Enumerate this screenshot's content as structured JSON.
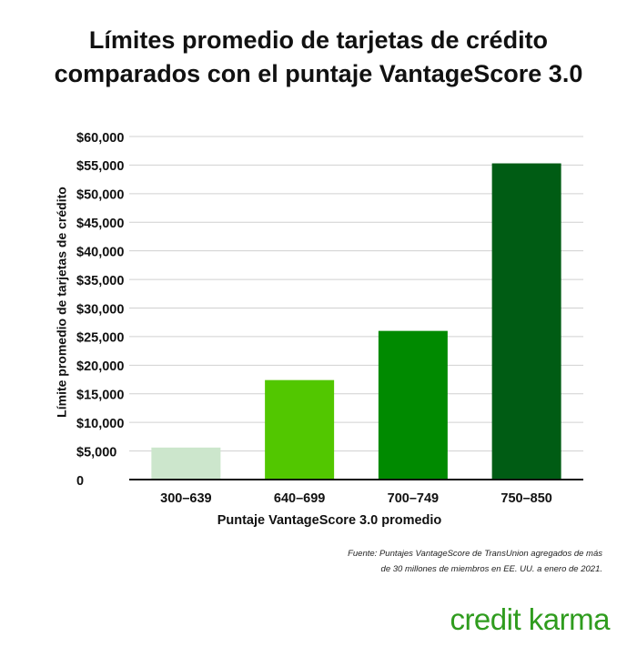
{
  "chart_data": {
    "type": "bar",
    "title_line1": "Límites promedio de tarjetas de crédito",
    "title_line2": "comparados con el puntaje VantageScore 3.0",
    "xlabel": "Puntaje VantageScore 3.0 promedio",
    "ylabel": "Límite promedio de tarjetas de crédito",
    "categories": [
      "300–639",
      "640–699",
      "700–749",
      "750–850"
    ],
    "values": [
      5600,
      17400,
      26000,
      55300
    ],
    "colors": [
      "#cce6cc",
      "#52c700",
      "#008a00",
      "#005c14"
    ],
    "ylim": [
      0,
      60000
    ],
    "yticks": [
      0,
      5000,
      10000,
      15000,
      20000,
      25000,
      30000,
      35000,
      40000,
      45000,
      50000,
      55000,
      60000
    ],
    "ytick_labels": [
      "0",
      "$5,000",
      "$10,000",
      "$15,000",
      "$20,000",
      "$25,000",
      "$30,000",
      "$35,000",
      "$40,000",
      "$45,000",
      "$50,000",
      "$55,000",
      "$60,000"
    ],
    "grid": true
  },
  "source_line1": "Fuente: Puntajes VantageScore de TransUnion agregados de más",
  "source_line2": "de 30 millones de miembros en EE. UU. a enero de 2021.",
  "brand": "credit karma"
}
